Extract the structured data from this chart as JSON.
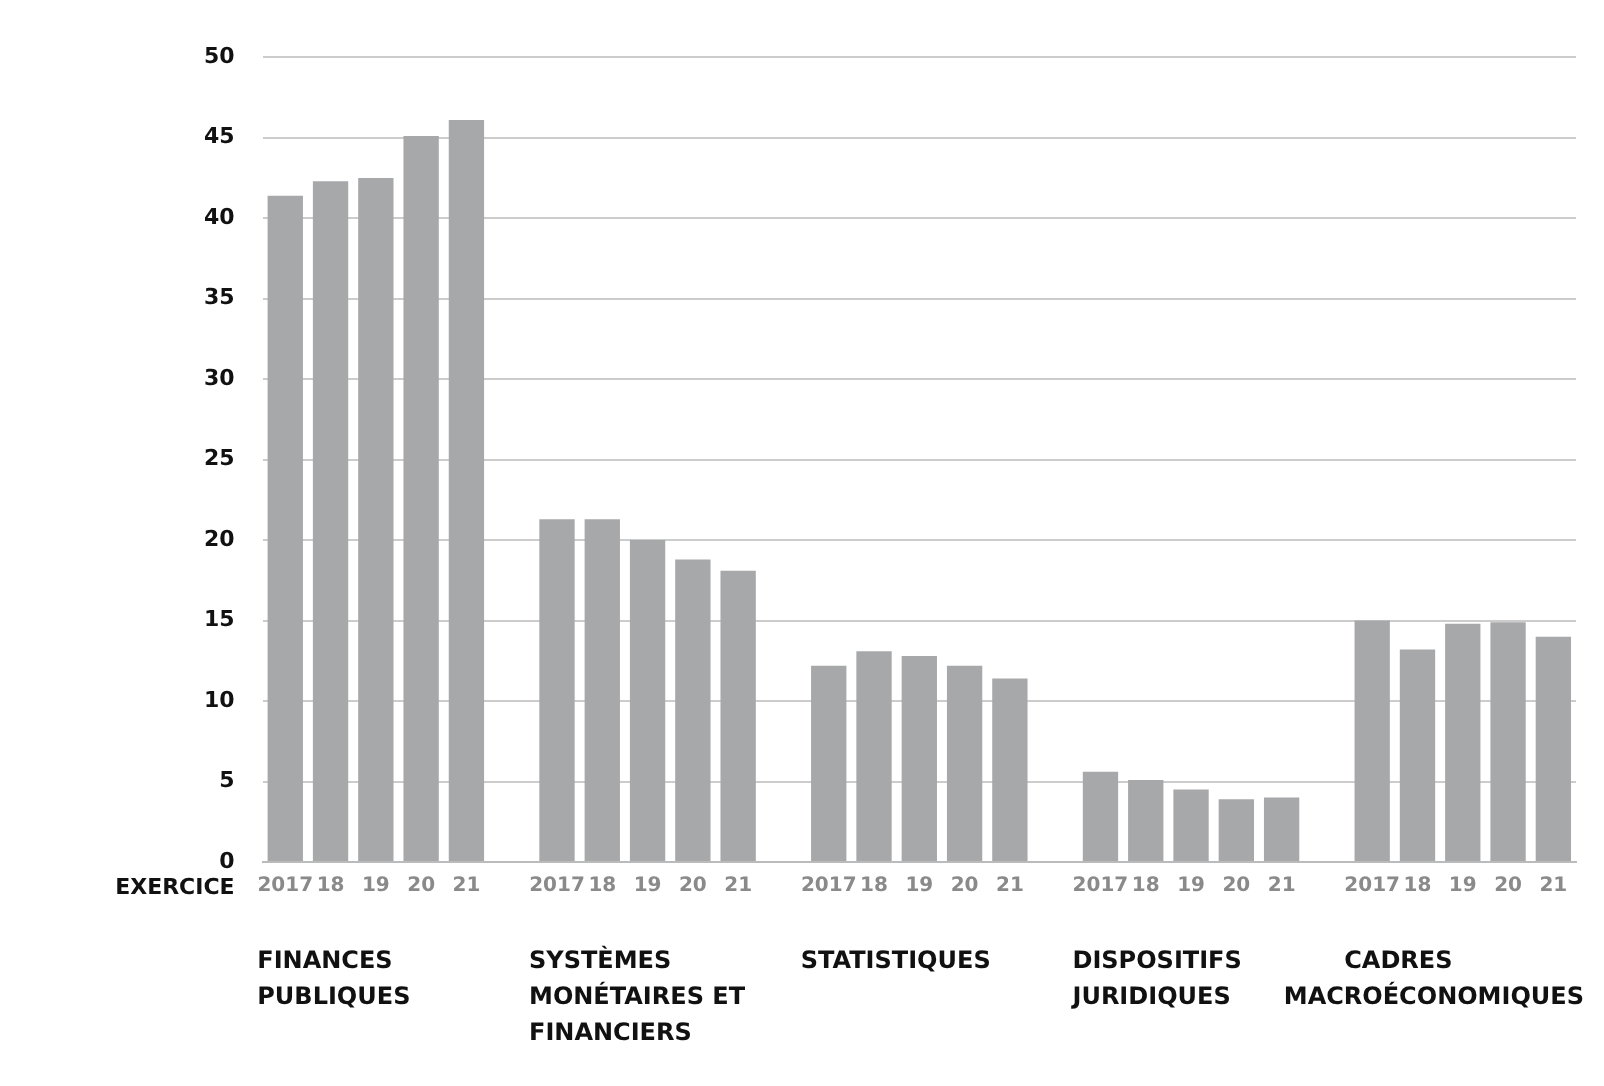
{
  "chart_data": {
    "type": "bar",
    "xlabel": "EXERCICE",
    "categories": [
      "2017",
      "18",
      "19",
      "20",
      "21",
      null,
      "2017",
      "18",
      "19",
      "20",
      "21",
      null,
      "2017",
      "18",
      "19",
      "20",
      "21",
      null,
      "2017",
      "18",
      "19",
      "20",
      "21",
      null,
      "2017",
      "18",
      "19",
      "20",
      "21"
    ],
    "values": [
      41.4,
      42.3,
      42.5,
      45.1,
      46.1,
      null,
      21.3,
      21.3,
      20.0,
      18.8,
      18.1,
      null,
      12.2,
      13.1,
      12.8,
      12.2,
      11.4,
      null,
      5.6,
      5.1,
      4.5,
      3.9,
      4.0,
      null,
      15.0,
      13.2,
      14.8,
      14.9,
      14.0
    ],
    "color": "#a7a8aa",
    "ylim": [
      0,
      50
    ],
    "yticks": [
      0,
      5,
      10,
      15,
      20,
      25,
      30,
      35,
      40,
      45,
      50
    ],
    "grid": "y",
    "annotations": [
      "FINANCES PUBLIQUES",
      "SYSTÈMES MONÉTAIRES ET FINANCIERS",
      "STATISTIQUES",
      "DISPOSITIFS JURIDIQUES",
      "CADRES MACROÉCONOMIQUES"
    ]
  }
}
